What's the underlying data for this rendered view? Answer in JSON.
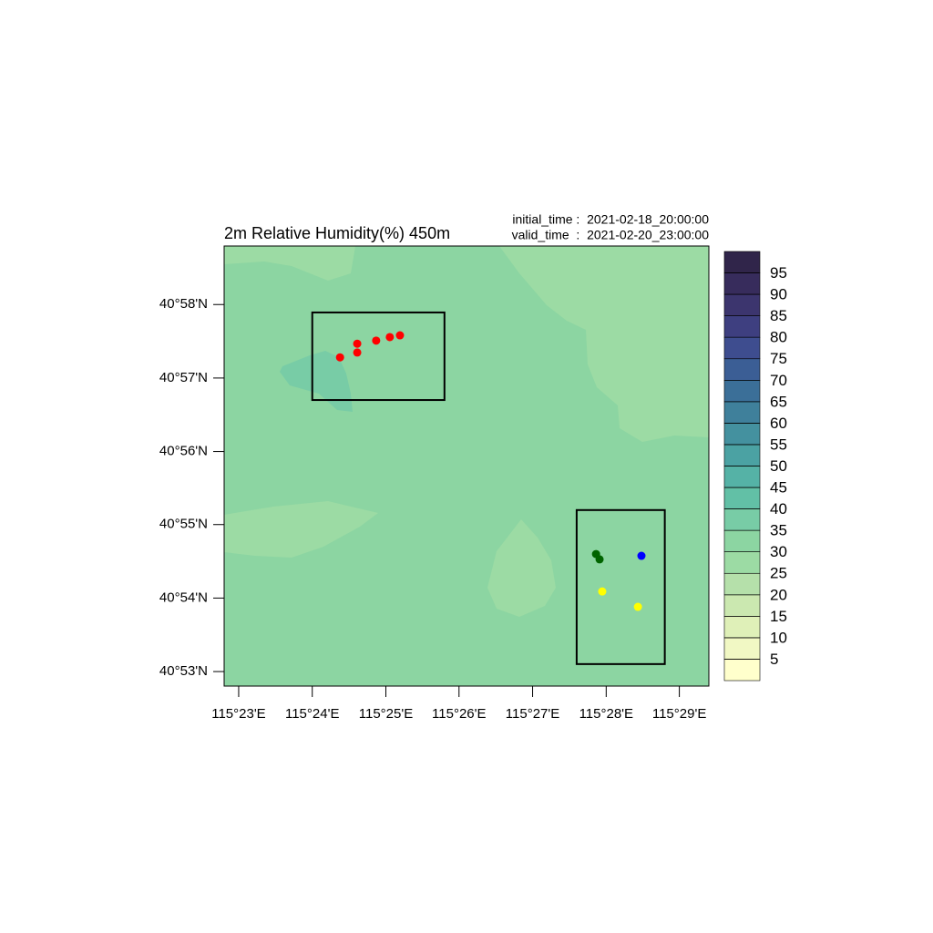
{
  "map_data": {
    "title": "2m Relative Humidity(%) 450m",
    "initial_time": "initial_time :  2021-02-18_20:00:00",
    "valid_time": "valid_time  :  2021-02-20_23:00:00",
    "xlim": [
      115.38,
      115.49
    ],
    "ylim": [
      40.88,
      40.98
    ],
    "xticks": [
      {
        "value": 115.3833,
        "label": "115°23'E"
      },
      {
        "value": 115.4,
        "label": "115°24'E"
      },
      {
        "value": 115.4167,
        "label": "115°25'E"
      },
      {
        "value": 115.4333,
        "label": "115°26'E"
      },
      {
        "value": 115.45,
        "label": "115°27'E"
      },
      {
        "value": 115.4667,
        "label": "115°28'E"
      },
      {
        "value": 115.4833,
        "label": "115°29'E"
      }
    ],
    "yticks": [
      {
        "value": 40.8833,
        "label": "40°53'N"
      },
      {
        "value": 40.9,
        "label": "40°54'N"
      },
      {
        "value": 40.9167,
        "label": "40°55'N"
      },
      {
        "value": 40.9333,
        "label": "40°56'N"
      },
      {
        "value": 40.95,
        "label": "40°57'N"
      },
      {
        "value": 40.9667,
        "label": "40°58'N"
      }
    ],
    "colorbar": {
      "levels": [
        5,
        10,
        15,
        20,
        25,
        30,
        35,
        40,
        45,
        50,
        55,
        60,
        65,
        70,
        75,
        80,
        85,
        90,
        95
      ],
      "colors": [
        "#ffffcc",
        "#f1f8c4",
        "#dff0b8",
        "#cbe8b0",
        "#b5e0aa",
        "#9cdba4",
        "#8cd5a2",
        "#78cca6",
        "#62c0a6",
        "#55b2a6",
        "#4ba2a3",
        "#44919f",
        "#3f809b",
        "#3b6f98",
        "#3b5e95",
        "#3e4d8f",
        "#3e3f80",
        "#3c356e",
        "#372c5c",
        "#30254a"
      ]
    },
    "boxes": [
      {
        "lon": [
          115.4,
          115.43
        ],
        "lat": [
          40.945,
          40.9649
        ]
      },
      {
        "lon": [
          115.46,
          115.48
        ],
        "lat": [
          40.885,
          40.92
        ]
      }
    ],
    "points": [
      {
        "color": "#ff0000",
        "lon": [
          115.4063,
          115.4102,
          115.4102,
          115.4145,
          115.4176,
          115.4199
        ],
        "lat": [
          40.9547,
          40.9558,
          40.9578,
          40.9585,
          40.9593,
          40.9597
        ]
      },
      {
        "color": "#006400",
        "lon": [
          115.4644,
          115.4652
        ],
        "lat": [
          40.91,
          40.9088
        ]
      },
      {
        "color": "#0000ff",
        "lon": [
          115.4747
        ],
        "lat": [
          40.9096
        ]
      },
      {
        "color": "#ffff00",
        "lon": [
          115.4658,
          115.4739
        ],
        "lat": [
          40.9015,
          40.898
        ]
      }
    ]
  }
}
